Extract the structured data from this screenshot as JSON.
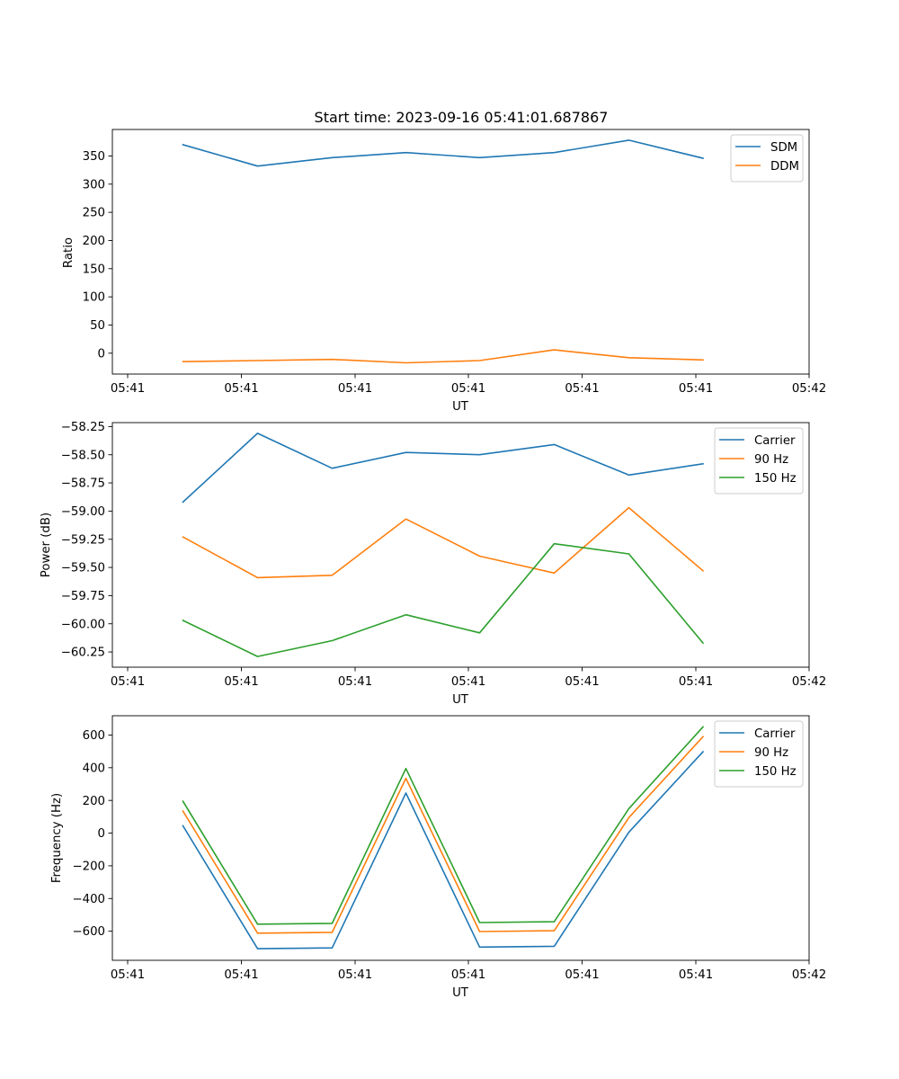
{
  "chart_data": [
    {
      "type": "line",
      "title": "Start time: 2023-09-16 05:41:01.687867",
      "xlabel": "UT",
      "ylabel": "Ratio",
      "x_tick_labels": [
        "05:41",
        "05:41",
        "05:41",
        "05:41",
        "05:41",
        "05:41",
        "05:42"
      ],
      "y_ticks": [
        0,
        50,
        100,
        150,
        200,
        250,
        300,
        350
      ],
      "y_tick_labels": [
        "0",
        "50",
        "100",
        "150",
        "200",
        "250",
        "300",
        "350"
      ],
      "ylim": [
        -37,
        397
      ],
      "x_index": [
        0,
        1,
        2,
        3,
        4,
        5,
        6,
        7
      ],
      "series": [
        {
          "name": "SDM",
          "color": "#1f77b4",
          "values": [
            370,
            332,
            347,
            356,
            347,
            356,
            378,
            346
          ]
        },
        {
          "name": "DDM",
          "color": "#ff7f0e",
          "values": [
            -15,
            -13,
            -11,
            -17,
            -13,
            6,
            -8,
            -12
          ]
        }
      ],
      "legend": "top-right"
    },
    {
      "type": "line",
      "title": "",
      "xlabel": "UT",
      "ylabel": "Power (dB)",
      "x_tick_labels": [
        "05:41",
        "05:41",
        "05:41",
        "05:41",
        "05:41",
        "05:41",
        "05:42"
      ],
      "y_ticks": [
        -60.25,
        -60.0,
        -59.75,
        -59.5,
        -59.25,
        -59.0,
        -58.75,
        -58.5,
        -58.25
      ],
      "y_tick_labels": [
        "−60.25",
        "−60.00",
        "−59.75",
        "−59.50",
        "−59.25",
        "−59.00",
        "−58.75",
        "−58.50",
        "−58.25"
      ],
      "ylim": [
        -60.385,
        -58.215
      ],
      "x_index": [
        0,
        1,
        2,
        3,
        4,
        5,
        6,
        7
      ],
      "series": [
        {
          "name": "Carrier",
          "color": "#1f77b4",
          "values": [
            -58.92,
            -58.31,
            -58.62,
            -58.48,
            -58.5,
            -58.41,
            -58.68,
            -58.58
          ]
        },
        {
          "name": "90 Hz",
          "color": "#ff7f0e",
          "values": [
            -59.23,
            -59.59,
            -59.57,
            -59.07,
            -59.4,
            -59.55,
            -58.97,
            -59.53
          ]
        },
        {
          "name": "150 Hz",
          "color": "#2ca02c",
          "values": [
            -59.97,
            -60.29,
            -60.15,
            -59.92,
            -60.08,
            -59.29,
            -59.38,
            -60.17
          ]
        }
      ],
      "legend": "top-right"
    },
    {
      "type": "line",
      "title": "",
      "xlabel": "UT",
      "ylabel": "Frequency (Hz)",
      "x_tick_labels": [
        "05:41",
        "05:41",
        "05:41",
        "05:41",
        "05:41",
        "05:41",
        "05:42"
      ],
      "y_ticks": [
        -600,
        -400,
        -200,
        0,
        200,
        400,
        600
      ],
      "y_tick_labels": [
        "−600",
        "−400",
        "−200",
        "0",
        "200",
        "400",
        "600"
      ],
      "ylim": [
        -778,
        718
      ],
      "x_index": [
        0,
        1,
        2,
        3,
        4,
        5,
        6,
        7
      ],
      "series": [
        {
          "name": "Carrier",
          "color": "#1f77b4",
          "values": [
            45,
            -707,
            -702,
            245,
            -697,
            -692,
            5,
            498
          ]
        },
        {
          "name": "90 Hz",
          "color": "#ff7f0e",
          "values": [
            135,
            -612,
            -607,
            335,
            -602,
            -597,
            95,
            590
          ]
        },
        {
          "name": "150 Hz",
          "color": "#2ca02c",
          "values": [
            195,
            -557,
            -552,
            395,
            -547,
            -542,
            150,
            650
          ]
        }
      ],
      "legend": "top-right"
    }
  ]
}
